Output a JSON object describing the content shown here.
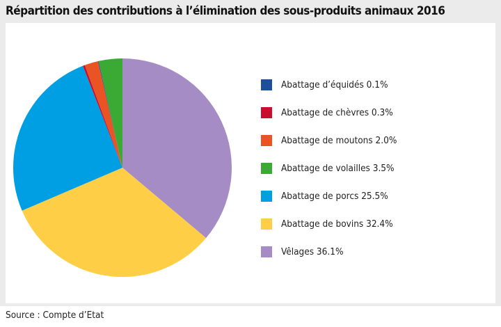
{
  "chart_data": {
    "type": "pie",
    "title": "Répartition des contributions à l’élimination des sous-produits animaux 2016",
    "slices_clockwise_from_top": [
      {
        "name": "Vêlages",
        "value": 36.1,
        "color": "#a68cc4"
      },
      {
        "name": "Abattage de bovins",
        "value": 32.4,
        "color": "#fece46"
      },
      {
        "name": "Abattage de porcs",
        "value": 25.5,
        "color": "#009fe3"
      },
      {
        "name": "Abattage de chèvres",
        "value": 0.3,
        "color": "#c8102e"
      },
      {
        "name": "Abattage de moutons",
        "value": 2.0,
        "color": "#ea5424"
      },
      {
        "name": "Abattage d’équidés",
        "value": 0.1,
        "color": "#1d4f9c"
      },
      {
        "name": "Abattage de volailles",
        "value": 3.5,
        "color": "#3aaa35"
      }
    ],
    "legend": [
      {
        "label": "Abattage d’équidés 0.1%",
        "color": "#1d4f9c"
      },
      {
        "label": "Abattage de chèvres 0.3%",
        "color": "#c8102e"
      },
      {
        "label": "Abattage de moutons 2.0%",
        "color": "#ea5424"
      },
      {
        "label": "Abattage de volailles 3.5%",
        "color": "#3aaa35"
      },
      {
        "label": "Abattage de porcs 25.5%",
        "color": "#009fe3"
      },
      {
        "label": "Abattage de bovins 32.4%",
        "color": "#fece46"
      },
      {
        "label": "Vêlages 36.1%",
        "color": "#a68cc4"
      }
    ],
    "legend_position": "right"
  },
  "source": "Source : Compte d’Etat"
}
